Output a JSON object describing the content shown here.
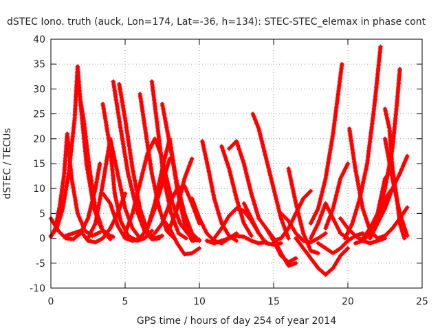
{
  "chart_data": {
    "type": "scatter",
    "title": "dSTEC Iono. truth (auck, Lon=174, Lat=-36, h=134): STEC-STEC_elemax in phase cont",
    "xlabel": "GPS time / hours of day 254 of year 2014",
    "ylabel": "dSTEC  / TECUs",
    "xlim": [
      0,
      25
    ],
    "ylim": [
      -10,
      40
    ],
    "xticks": [
      0,
      5,
      10,
      15,
      20,
      25
    ],
    "yticks": [
      -10,
      -5,
      0,
      5,
      10,
      15,
      20,
      25,
      30,
      35,
      40
    ],
    "grid": true,
    "legend": "none",
    "marker": "+",
    "color": "#ff0000",
    "series": [
      {
        "x": [
          0.0,
          0.4,
          0.8,
          1.2,
          1.6,
          1.8
        ],
        "y": [
          0.5,
          2,
          6,
          13,
          24,
          34.5
        ]
      },
      {
        "x": [
          1.8,
          2.0,
          2.4,
          2.9,
          3.4,
          3.8,
          4.2
        ],
        "y": [
          34.5,
          27,
          15,
          6,
          2,
          0.8,
          0.3
        ]
      },
      {
        "x": [
          0.0,
          0.3,
          0.6,
          0.9,
          1.1
        ],
        "y": [
          0.3,
          2,
          6.5,
          13,
          21
        ]
      },
      {
        "x": [
          1.1,
          1.4,
          1.8,
          2.3,
          2.8,
          3.3
        ],
        "y": [
          21,
          12,
          5,
          1.5,
          0.5,
          1.2
        ]
      },
      {
        "x": [
          0.0,
          0.5,
          1.0,
          1.5,
          2.0,
          2.5,
          3.0,
          3.3
        ],
        "y": [
          4,
          1.5,
          0,
          -0.2,
          1,
          4,
          10,
          15
        ]
      },
      {
        "x": [
          2.0,
          2.2,
          2.6,
          3.0,
          3.5,
          4.0
        ],
        "y": [
          27.5,
          24,
          14,
          6,
          1.5,
          -0.2
        ]
      },
      {
        "x": [
          1.0,
          2.0,
          2.5,
          3.0,
          3.5,
          4.0,
          4.5,
          5.0
        ],
        "y": [
          0.5,
          1.5,
          -0.5,
          -0.8,
          0,
          2,
          5,
          9
        ]
      },
      {
        "x": [
          2.5,
          3.0,
          3.5,
          4.0,
          4.5,
          5.0,
          5.5,
          6.0
        ],
        "y": [
          0,
          3,
          11,
          20,
          13,
          6,
          2,
          0
        ]
      },
      {
        "x": [
          3.5,
          4.0,
          4.3,
          4.7,
          5.2,
          5.8,
          6.3,
          6.8
        ],
        "y": [
          27,
          18,
          9,
          3.5,
          0.5,
          -0.5,
          0,
          1.5
        ]
      },
      {
        "x": [
          4.2,
          4.7,
          5.2,
          5.8,
          6.3,
          6.8,
          7.3
        ],
        "y": [
          31.5,
          22,
          13,
          5.5,
          1.5,
          -0.2,
          0
        ]
      },
      {
        "x": [
          4.6,
          5.0,
          5.5,
          6.0,
          6.5,
          7.0,
          7.5
        ],
        "y": [
          31,
          24,
          14,
          6,
          1.5,
          0,
          0.5
        ]
      },
      {
        "x": [
          3.5,
          4.0,
          4.5,
          5.0,
          5.5,
          6.0,
          6.5,
          7.0,
          7.5,
          8.0
        ],
        "y": [
          9,
          7,
          2.5,
          0,
          -0.5,
          0,
          2,
          6,
          11,
          16
        ]
      },
      {
        "x": [
          6.0,
          6.4,
          6.8,
          7.3,
          7.8,
          8.3
        ],
        "y": [
          29,
          21,
          13,
          6,
          1.5,
          0
        ]
      },
      {
        "x": [
          6.8,
          7.2,
          7.6,
          8.1,
          8.6,
          9.1
        ],
        "y": [
          31.5,
          22,
          12,
          5,
          1,
          0
        ]
      },
      {
        "x": [
          5.0,
          5.5,
          6.0,
          6.5,
          7.0,
          7.4
        ],
        "y": [
          1,
          5,
          11,
          17,
          20,
          17
        ]
      },
      {
        "x": [
          7.4,
          7.8,
          8.2,
          8.7,
          9.2,
          9.7
        ],
        "y": [
          17,
          12,
          7,
          3,
          1,
          0
        ]
      },
      {
        "x": [
          6.0,
          6.5,
          7.0,
          7.5,
          8.0
        ],
        "y": [
          0,
          2,
          7,
          14,
          20
        ]
      },
      {
        "x": [
          8.0,
          8.5,
          9.0,
          9.5,
          10.0
        ],
        "y": [
          20,
          10,
          3,
          -0.5,
          -0.3
        ]
      },
      {
        "x": [
          7.5,
          8.0,
          8.5,
          9.0,
          9.5,
          10.0
        ],
        "y": [
          27,
          19,
          11,
          5,
          1,
          -0.5
        ]
      },
      {
        "x": [
          7.0,
          7.5,
          8.0,
          8.5,
          9.0,
          9.5,
          10.0
        ],
        "y": [
          1,
          3,
          7,
          10,
          10.5,
          7,
          3
        ]
      },
      {
        "x": [
          7.5,
          8.0,
          8.5,
          9.0,
          9.5
        ],
        "y": [
          4,
          2,
          -1,
          -3.2,
          -3
        ]
      },
      {
        "x": [
          9.5,
          10.0
        ],
        "y": [
          -3,
          -2
        ]
      },
      {
        "x": [
          8.0,
          8.5,
          9.0,
          9.5
        ],
        "y": [
          2,
          6,
          12,
          16
        ]
      },
      {
        "x": [
          10.2,
          10.6,
          11.0,
          11.5,
          12.0,
          12.5
        ],
        "y": [
          19.5,
          14,
          8,
          3,
          0.5,
          -0.5
        ]
      },
      {
        "x": [
          9.5,
          10.0,
          10.5,
          11.0,
          11.5,
          12.0,
          12.5
        ],
        "y": [
          8,
          4,
          1,
          -0.5,
          -1,
          0,
          1
        ]
      },
      {
        "x": [
          11.5,
          12.0,
          12.5,
          13.0,
          13.5
        ],
        "y": [
          18.5,
          14,
          8,
          3,
          0.5
        ]
      },
      {
        "x": [
          12.0,
          12.5,
          13.0,
          13.5,
          14.0
        ],
        "y": [
          18,
          19.5,
          15,
          9,
          4
        ]
      },
      {
        "x": [
          11.0,
          11.5,
          12.0,
          12.5,
          13.0,
          13.5,
          14.0
        ],
        "y": [
          0,
          2,
          4.5,
          6,
          5.5,
          3.5,
          1
        ]
      },
      {
        "x": [
          10.5,
          11.0,
          11.5,
          12.0,
          12.5,
          13.0,
          13.5,
          14.0,
          14.5
        ],
        "y": [
          -0.5,
          -1,
          -0.5,
          0,
          0.5,
          0.3,
          -0.5,
          -1,
          -0.7
        ]
      },
      {
        "x": [
          13.6,
          14.0,
          14.5,
          15.0,
          15.5,
          16.0
        ],
        "y": [
          25,
          22,
          16,
          10,
          4,
          0
        ]
      },
      {
        "x": [
          13.0,
          13.5,
          14.0,
          14.5,
          15.0,
          15.5
        ],
        "y": [
          7,
          4,
          1,
          -1,
          -1.3,
          -1
        ]
      },
      {
        "x": [
          14.0,
          14.5,
          15.0,
          15.5,
          16.0,
          16.5
        ],
        "y": [
          4,
          2,
          -0.5,
          -3.5,
          -4.8,
          -4
        ]
      },
      {
        "x": [
          14.5,
          15.0,
          15.5,
          16.0,
          16.5
        ],
        "y": [
          2,
          0,
          -3,
          -5.5,
          -5
        ]
      },
      {
        "x": [
          15.0,
          15.5,
          16.0,
          16.5,
          17.0,
          17.5
        ],
        "y": [
          -0.5,
          0,
          2,
          5,
          8,
          9.5
        ]
      },
      {
        "x": [
          16.0,
          16.5,
          17.0,
          17.5,
          18.0
        ],
        "y": [
          14,
          7,
          1,
          -2.5,
          -3
        ]
      },
      {
        "x": [
          15.5,
          16.0,
          16.5,
          17.0,
          17.5,
          18.0,
          18.5
        ],
        "y": [
          5,
          3.5,
          1,
          -0.5,
          -0.8,
          0,
          1
        ]
      },
      {
        "x": [
          16.5,
          17.0,
          17.5,
          18.0,
          18.5,
          19.0,
          19.5,
          20.0
        ],
        "y": [
          0,
          -2,
          -4,
          -6,
          -7.3,
          -6,
          -3.5,
          -2
        ]
      },
      {
        "x": [
          17.5,
          18.0,
          18.5,
          19.0,
          19.5,
          20.0
        ],
        "y": [
          0,
          3,
          7,
          4,
          1,
          0
        ]
      },
      {
        "x": [
          18.0,
          18.5,
          19.0,
          19.5,
          20.0,
          20.5,
          21.0
        ],
        "y": [
          -1,
          -2,
          -3,
          -2,
          -0.5,
          0.5,
          1
        ]
      },
      {
        "x": [
          17.5,
          18.0,
          18.5,
          19.0,
          19.3,
          19.6
        ],
        "y": [
          3,
          6,
          12,
          21,
          28,
          35
        ]
      },
      {
        "x": [
          18.5,
          19.0,
          19.5,
          20.0
        ],
        "y": [
          2,
          6,
          12,
          15
        ]
      },
      {
        "x": [
          20.1,
          20.5,
          21.0,
          21.5,
          22.0
        ],
        "y": [
          22,
          14,
          6,
          1.5,
          0
        ]
      },
      {
        "x": [
          19.5,
          20.0,
          20.5,
          21.0,
          21.5,
          22.0,
          22.5
        ],
        "y": [
          4,
          2,
          0.5,
          -0.5,
          -1,
          -0.5,
          0
        ]
      },
      {
        "x": [
          19.8,
          20.3,
          20.8,
          21.3,
          21.8,
          22.2
        ],
        "y": [
          0,
          3,
          8,
          15,
          27,
          38.5
        ]
      },
      {
        "x": [
          20.5,
          21.0,
          21.5,
          22.0,
          22.5,
          23.0
        ],
        "y": [
          -1,
          -0.5,
          1,
          4,
          8,
          10
        ]
      },
      {
        "x": [
          21.0,
          21.5,
          22.0,
          22.5,
          23.0
        ],
        "y": [
          0,
          2,
          5,
          12,
          14
        ]
      },
      {
        "x": [
          22.5,
          22.8,
          23.0,
          23.3,
          23.5,
          23.8
        ],
        "y": [
          26,
          22,
          14,
          8,
          3,
          0
        ]
      },
      {
        "x": [
          22.0,
          22.5,
          23.0,
          23.3,
          23.5
        ],
        "y": [
          5,
          10,
          18,
          27,
          34
        ]
      },
      {
        "x": [
          22.0,
          22.5,
          23.0,
          23.5,
          24.0
        ],
        "y": [
          0,
          0.5,
          2,
          4,
          6.2
        ]
      },
      {
        "x": [
          22.5,
          23.0,
          23.5,
          24.0
        ],
        "y": [
          20,
          12,
          5,
          0.5
        ]
      },
      {
        "x": [
          21.5,
          22.0,
          22.5,
          23.0,
          23.5,
          24.0
        ],
        "y": [
          0,
          3,
          6,
          10,
          13,
          16.5
        ]
      }
    ]
  }
}
